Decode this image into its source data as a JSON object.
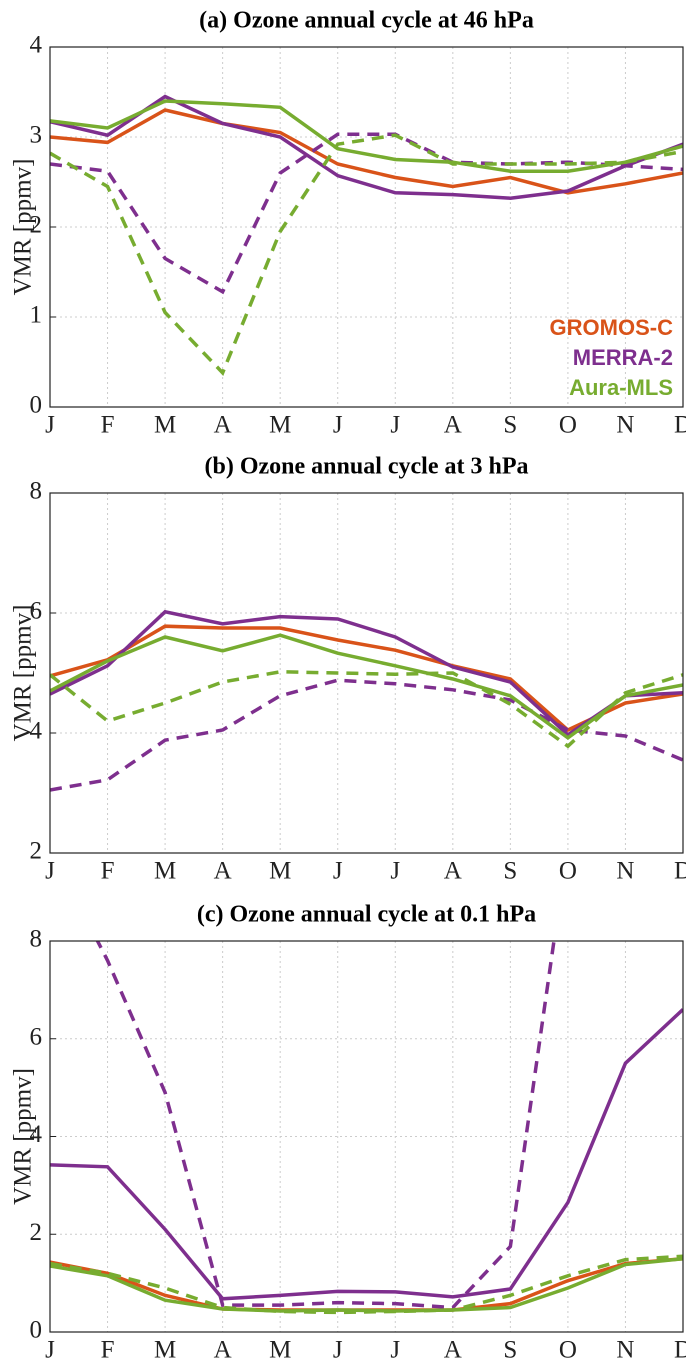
{
  "chart_data": [
    {
      "type": "line",
      "title": "(a) Ozone annual cycle at 46 hPa",
      "y_label": "VMR [ppmv]",
      "categories": [
        "J",
        "F",
        "M",
        "A",
        "M",
        "J",
        "J",
        "A",
        "S",
        "O",
        "N",
        "D"
      ],
      "ylim": [
        0,
        4
      ],
      "yticks": [
        0,
        1,
        2,
        3,
        4
      ],
      "grid": true,
      "legend": "lower right",
      "series": [
        {
          "name": "GROMOS-C",
          "color": "#d95319",
          "values": [
            3.0,
            2.94,
            3.3,
            3.15,
            3.05,
            2.7,
            2.55,
            2.45,
            2.55,
            2.38,
            2.48,
            2.6
          ]
        },
        {
          "name": "MERRA-2",
          "color": "#7e2f8e",
          "values": [
            3.17,
            3.02,
            3.45,
            3.15,
            3.0,
            2.57,
            2.38,
            2.36,
            2.32,
            2.4,
            2.68,
            2.92
          ],
          "dashed_values": [
            2.7,
            2.62,
            1.65,
            1.28,
            2.6,
            3.03,
            3.03,
            2.72,
            2.7,
            2.72,
            2.68,
            2.64
          ]
        },
        {
          "name": "Aura-MLS",
          "color": "#77ac30",
          "values": [
            3.18,
            3.1,
            3.4,
            3.37,
            3.33,
            2.87,
            2.75,
            2.72,
            2.62,
            2.62,
            2.72,
            2.9
          ],
          "dashed_values": [
            2.82,
            2.45,
            1.05,
            0.38,
            1.95,
            2.92,
            3.02,
            2.7,
            2.7,
            2.7,
            2.72,
            2.84
          ]
        }
      ]
    },
    {
      "type": "line",
      "title": "(b) Ozone annual cycle at 3 hPa",
      "y_label": "VMR [ppmv]",
      "categories": [
        "J",
        "F",
        "M",
        "A",
        "M",
        "J",
        "J",
        "A",
        "S",
        "O",
        "N",
        "D"
      ],
      "ylim": [
        2,
        8
      ],
      "yticks": [
        2,
        4,
        6,
        8
      ],
      "grid": true,
      "series": [
        {
          "color": "#d95319",
          "values": [
            4.95,
            5.22,
            5.78,
            5.75,
            5.75,
            5.55,
            5.38,
            5.12,
            4.9,
            4.05,
            4.5,
            4.65
          ]
        },
        {
          "color": "#7e2f8e",
          "values": [
            4.65,
            5.12,
            6.02,
            5.82,
            5.94,
            5.9,
            5.6,
            5.1,
            4.85,
            3.97,
            4.62,
            4.67
          ],
          "dashed_values": [
            3.05,
            3.22,
            3.88,
            4.05,
            4.62,
            4.88,
            4.82,
            4.72,
            4.55,
            4.05,
            3.95,
            3.55
          ]
        },
        {
          "color": "#77ac30",
          "values": [
            4.7,
            5.2,
            5.6,
            5.37,
            5.63,
            5.33,
            5.12,
            4.9,
            4.62,
            3.92,
            4.62,
            4.8
          ],
          "dashed_values": [
            4.97,
            4.2,
            4.5,
            4.85,
            5.02,
            5.0,
            4.98,
            5.0,
            4.48,
            3.78,
            4.67,
            4.97
          ]
        }
      ]
    },
    {
      "type": "line",
      "title": "(c) Ozone annual cycle at 0.1 hPa",
      "y_label": "VMR [ppmv]",
      "categories": [
        "J",
        "F",
        "M",
        "A",
        "M",
        "J",
        "J",
        "A",
        "S",
        "O",
        "N",
        "D"
      ],
      "ylim": [
        0,
        8
      ],
      "yticks": [
        0,
        2,
        4,
        6,
        8
      ],
      "grid": true,
      "series": [
        {
          "color": "#d95319",
          "values": [
            1.43,
            1.2,
            0.75,
            0.47,
            0.45,
            0.45,
            0.45,
            0.45,
            0.58,
            1.05,
            1.4,
            1.5
          ]
        },
        {
          "color": "#7e2f8e",
          "values": [
            3.42,
            3.38,
            2.1,
            0.68,
            0.75,
            0.83,
            0.82,
            0.72,
            0.88,
            2.65,
            5.5,
            6.6
          ],
          "dashed_values": [
            9.9,
            7.6,
            4.9,
            0.55,
            0.55,
            0.6,
            0.58,
            0.5,
            1.75,
            10.0,
            null,
            null
          ]
        },
        {
          "color": "#77ac30",
          "values": [
            1.35,
            1.15,
            0.65,
            0.47,
            0.43,
            0.45,
            0.43,
            0.45,
            0.5,
            0.9,
            1.38,
            1.5
          ],
          "dashed_values": [
            1.4,
            1.2,
            0.9,
            0.5,
            0.42,
            0.4,
            0.42,
            0.45,
            0.75,
            1.15,
            1.48,
            1.55
          ]
        }
      ]
    }
  ]
}
